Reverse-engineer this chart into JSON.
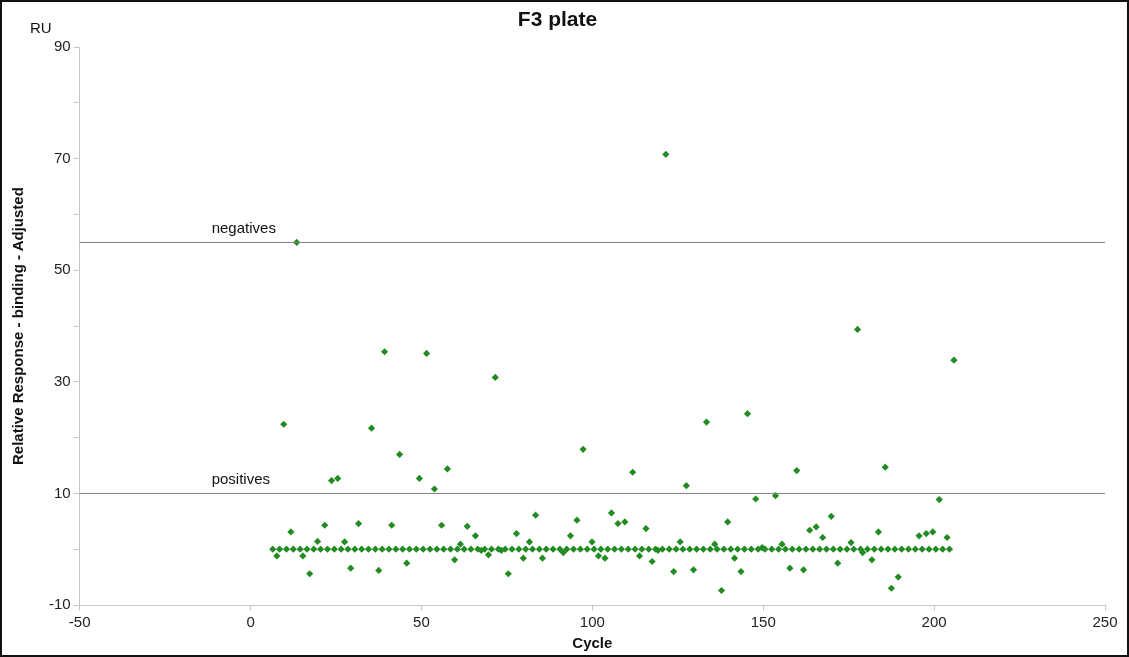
{
  "chart_data": {
    "type": "scatter",
    "title": "F3 plate",
    "xlabel": "Cycle",
    "ylabel": "Relative Response - binding - Adjusted",
    "annotations": [
      "RU"
    ],
    "xlim": [
      -50,
      250
    ],
    "xticks": [
      -50,
      0,
      50,
      100,
      150,
      200,
      250
    ],
    "ylim": [
      -10,
      90
    ],
    "yticks": [
      -10,
      {
        "value": 0,
        "label": null
      },
      10,
      {
        "value": 20,
        "label": null
      },
      30,
      {
        "value": 40,
        "label": null
      },
      50,
      {
        "value": 60,
        "label": null
      },
      70,
      {
        "value": 80,
        "label": null
      },
      90
    ],
    "grid": false,
    "legend": false,
    "marker": "diamond",
    "ref_lines": [
      {
        "axis": "y",
        "value": 55,
        "label": "negatives",
        "color": "#808080"
      },
      {
        "axis": "y",
        "value": 10,
        "label": "positives",
        "color": "#808080"
      }
    ],
    "series": [
      {
        "color": "#228b22",
        "x": [
          9.7,
          13.5,
          23.7,
          25.5,
          35.4,
          39.2,
          43.6,
          51.5,
          49.4,
          53.8,
          57.6,
          71.6,
          121.5,
          97.3,
          111.8,
          127.5,
          133.4,
          145.4,
          159.8,
          147.8,
          153.6,
          177.6,
          205.8,
          185.7,
          201.5,
          7.7,
          11.8,
          15.3,
          17.3,
          19.6,
          21.7,
          27.5,
          29.3,
          31.6,
          37.5,
          41.3,
          45.7,
          55.9,
          59.7,
          61.4,
          63.4,
          65.8,
          67.5,
          69.6,
          73.4,
          75.4,
          77.8,
          79.8,
          81.6,
          83.4,
          85.4,
          91.5,
          93.6,
          95.5,
          99.9,
          101.8,
          103.7,
          105.6,
          107.5,
          109.5,
          113.8,
          115.7,
          117.5,
          119.2,
          123.8,
          125.7,
          129.6,
          135.8,
          137.8,
          139.6,
          141.6,
          143.5,
          149.7,
          155.5,
          157.8,
          161.8,
          163.6,
          165.5,
          167.4,
          169.9,
          171.8,
          175.7,
          179.1,
          181.8,
          183.7,
          187.5,
          189.5,
          195.6,
          197.7,
          199.6,
          203.8,
          6.5,
          8.5,
          10.5,
          12.5,
          14.5,
          16.5,
          18.5,
          20.5,
          22.5,
          24.5,
          26.5,
          28.5,
          30.5,
          32.5,
          34.5,
          36.5,
          38.5,
          40.5,
          42.5,
          44.5,
          46.5,
          48.5,
          50.5,
          52.5,
          54.5,
          56.5,
          58.5,
          60.5,
          62.5,
          64.5,
          66.5,
          68.5,
          70.5,
          72.5,
          74.5,
          76.5,
          78.5,
          80.5,
          82.5,
          84.5,
          86.5,
          88.5,
          90.5,
          92.5,
          94.5,
          96.5,
          98.5,
          100.5,
          102.5,
          104.5,
          106.5,
          108.5,
          110.5,
          112.5,
          114.5,
          116.5,
          118.5,
          120.5,
          122.5,
          124.5,
          126.5,
          128.5,
          130.5,
          132.5,
          134.5,
          136.5,
          138.5,
          140.5,
          142.5,
          144.5,
          146.5,
          148.5,
          150.5,
          152.5,
          154.5,
          156.5,
          158.5,
          160.5,
          162.5,
          164.5,
          166.5,
          168.5,
          170.5,
          172.5,
          174.5,
          176.5,
          178.5,
          180.5,
          182.5,
          184.5,
          186.5,
          188.5,
          190.5,
          192.5,
          194.5,
          196.5,
          198.5,
          200.5,
          202.5,
          204.5
        ],
        "values": [
          22.4,
          55.0,
          12.3,
          12.7,
          21.7,
          35.4,
          17.0,
          35.1,
          12.7,
          10.8,
          14.4,
          30.8,
          70.8,
          17.9,
          13.8,
          11.4,
          22.8,
          24.3,
          14.1,
          9.0,
          9.6,
          39.4,
          33.9,
          14.7,
          8.9,
          -1.2,
          3.1,
          -1.2,
          -4.4,
          1.4,
          4.3,
          1.3,
          -3.4,
          4.6,
          -3.8,
          4.3,
          -2.5,
          4.3,
          -1.9,
          0.9,
          4.1,
          2.4,
          -0.2,
          -1.0,
          -0.2,
          -4.4,
          2.8,
          -1.6,
          1.3,
          6.1,
          -1.6,
          -0.6,
          2.4,
          5.2,
          1.3,
          -1.2,
          -1.6,
          6.5,
          4.6,
          4.9,
          -1.2,
          3.7,
          -2.2,
          -0.2,
          -4.0,
          1.3,
          -3.7,
          0.9,
          -7.4,
          4.9,
          -1.6,
          -4.0,
          0.3,
          0.9,
          -3.4,
          -3.7,
          3.4,
          4.0,
          2.1,
          5.9,
          -2.5,
          1.2,
          -0.6,
          -1.9,
          3.1,
          -7.0,
          -5.0,
          2.4,
          2.8,
          3.1,
          2.1,
          0,
          0,
          0,
          0,
          0,
          0,
          0,
          0,
          0,
          0,
          0,
          0,
          0,
          0,
          0,
          0,
          0,
          0,
          0,
          0,
          0,
          0,
          0,
          0,
          0,
          0,
          0,
          0,
          0,
          0,
          0,
          0,
          0,
          0,
          0,
          0,
          0,
          0,
          0,
          0,
          0,
          0,
          0,
          0,
          0,
          0,
          0,
          0,
          0,
          0,
          0,
          0,
          0,
          0,
          0,
          0,
          0,
          0,
          0,
          0,
          0,
          0,
          0,
          0,
          0,
          0,
          0,
          0,
          0,
          0,
          0,
          0,
          0,
          0,
          0,
          0,
          0,
          0,
          0,
          0,
          0,
          0,
          0,
          0,
          0,
          0,
          0,
          0,
          0,
          0,
          0,
          0,
          0,
          0,
          0,
          0,
          0,
          0,
          0,
          0
        ]
      }
    ]
  }
}
